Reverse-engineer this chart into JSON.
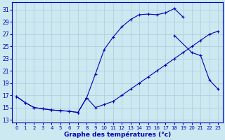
{
  "title": "Graphe des températures (°c)",
  "bg_color": "#cce8f0",
  "grid_color": "#aaccdd",
  "line_color": "#0000bb",
  "xlim": [
    -0.5,
    23.5
  ],
  "ylim": [
    12.5,
    32.2
  ],
  "xticks": [
    0,
    1,
    2,
    3,
    4,
    5,
    6,
    7,
    8,
    9,
    10,
    11,
    12,
    13,
    14,
    15,
    16,
    17,
    18,
    19,
    20,
    21,
    22,
    23
  ],
  "yticks": [
    13,
    15,
    17,
    19,
    21,
    23,
    25,
    27,
    29,
    31
  ],
  "line1_x": [
    0,
    1,
    2,
    3,
    4,
    5,
    6,
    7,
    8,
    9,
    10,
    11,
    12,
    13,
    14,
    15,
    16,
    17,
    18,
    19,
    20,
    21,
    22,
    23
  ],
  "line1_y": [
    16.8,
    15.8,
    15.0,
    14.8,
    14.6,
    14.5,
    14.4,
    14.2,
    16.6,
    15.0,
    15.5,
    16.0,
    17.0,
    18.0,
    19.0,
    20.0,
    21.0,
    22.0,
    23.0,
    24.0,
    25.0,
    26.0,
    27.0,
    27.5
  ],
  "line2_x": [
    0,
    1,
    2,
    3,
    4,
    5,
    6,
    7,
    8,
    9,
    10,
    11,
    12,
    13,
    14,
    15,
    16,
    17,
    18,
    19,
    20,
    21,
    22,
    23
  ],
  "line2_y": [
    16.8,
    15.8,
    15.0,
    14.8,
    14.6,
    14.5,
    14.4,
    14.2,
    16.6,
    20.5,
    24.5,
    26.5,
    28.2,
    29.4,
    30.2,
    30.3,
    30.2,
    30.5,
    31.2,
    29.8,
    null,
    null,
    null,
    null
  ],
  "line3_x": [
    18,
    19,
    20,
    21,
    22,
    23
  ],
  "line3_y": [
    26.8,
    null,
    24.0,
    23.5,
    19.5,
    18.0
  ]
}
